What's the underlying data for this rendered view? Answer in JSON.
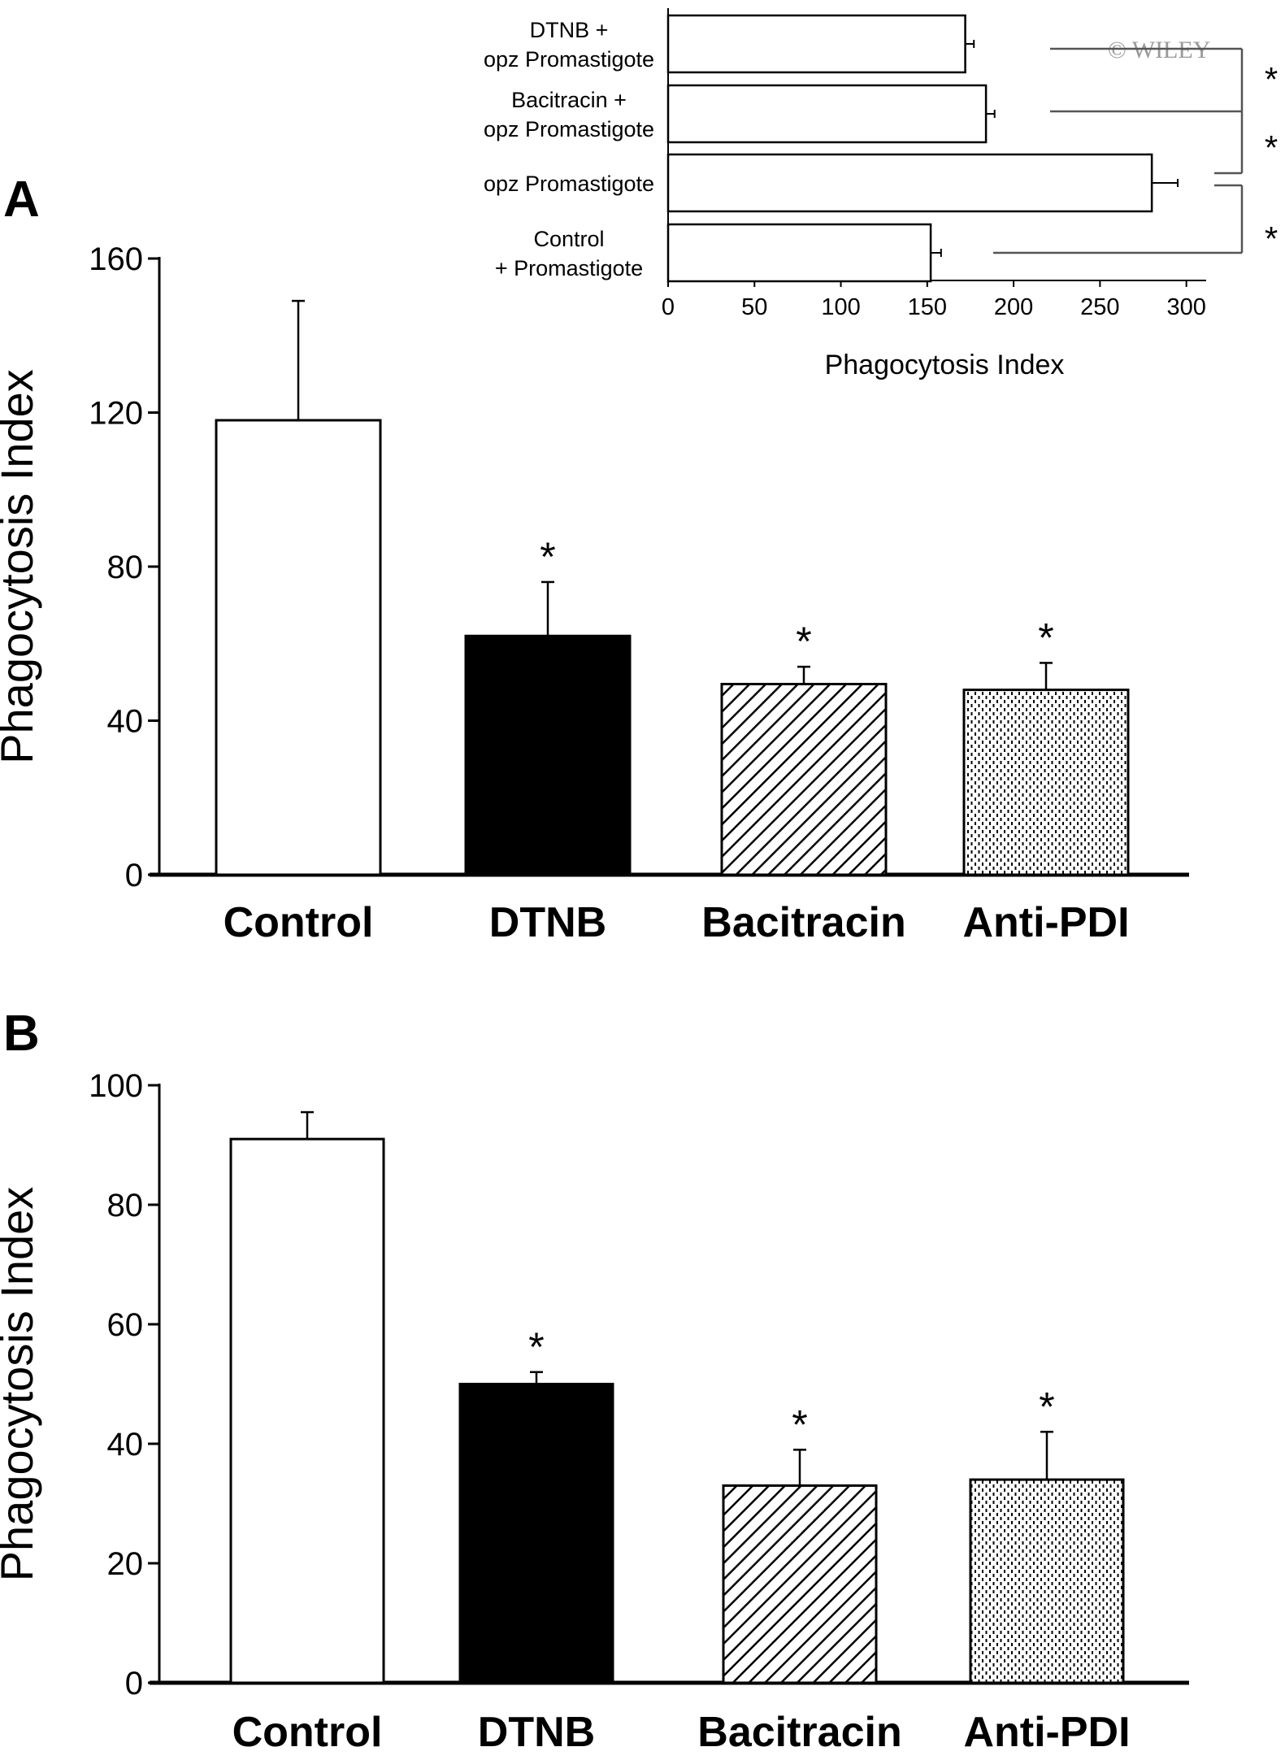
{
  "watermark": "© WILEY",
  "chart_data": [
    {
      "panel": "A",
      "type": "bar",
      "ylabel": "Phagocytosis Index",
      "ylim": [
        0,
        160
      ],
      "yticks": [
        "0",
        "40",
        "80",
        "120",
        "160"
      ],
      "categories": [
        "Control",
        "DTNB",
        "Bacitracin",
        "Anti-PDI"
      ],
      "values": [
        118,
        62,
        49.5,
        48
      ],
      "errors": [
        31,
        14,
        4.5,
        7
      ],
      "fills": [
        "white",
        "black",
        "diagonal-hatch",
        "dotted"
      ],
      "significance": [
        "",
        "*",
        "*",
        "*"
      ]
    },
    {
      "panel": "inset",
      "type": "bar",
      "orientation": "horizontal",
      "xlabel": "Phagocytosis Index",
      "xlim": [
        0,
        300
      ],
      "xticks": [
        "0",
        "50",
        "100",
        "150",
        "200",
        "250",
        "300"
      ],
      "categories": [
        [
          "DTNB +",
          "opz Promastigote"
        ],
        [
          "Bacitracin +",
          "opz Promastigote"
        ],
        [
          "opz Promastigote"
        ],
        [
          "Control",
          "+ Promastigote"
        ]
      ],
      "values": [
        172,
        184,
        280,
        152
      ],
      "errors": [
        5,
        5,
        15,
        6
      ],
      "significance_marks": [
        "*",
        "*",
        "*"
      ]
    },
    {
      "panel": "B",
      "type": "bar",
      "ylabel": "Phagocytosis Index",
      "ylim": [
        0,
        100
      ],
      "yticks": [
        "0",
        "20",
        "40",
        "60",
        "80",
        "100"
      ],
      "categories": [
        "Control",
        "DTNB",
        "Bacitracin",
        "Anti-PDI"
      ],
      "values": [
        91,
        50,
        33,
        34
      ],
      "errors": [
        4.5,
        2,
        6,
        8
      ],
      "fills": [
        "white",
        "black",
        "diagonal-hatch",
        "dotted"
      ],
      "significance": [
        "",
        "*",
        "*",
        "*"
      ]
    }
  ]
}
